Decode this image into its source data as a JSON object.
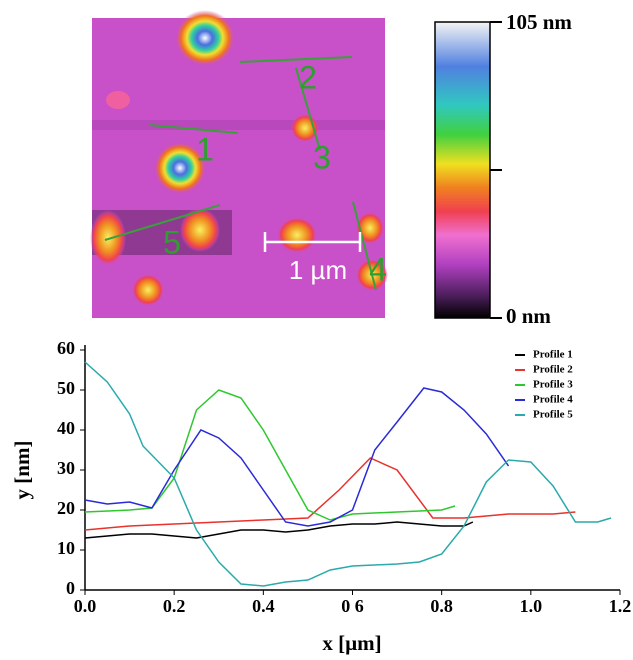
{
  "image": {
    "labels": [
      "1",
      "2",
      "3",
      "4",
      "5",
      "1 µm"
    ]
  },
  "colorbar": {
    "max_label": "105 nm",
    "min_label": "0 nm"
  },
  "chart_data": {
    "type": "line",
    "xlabel": "x [µm]",
    "ylabel": "y [nm]",
    "xlim": [
      0,
      1.2
    ],
    "ylim": [
      0,
      60
    ],
    "xticks": [
      {
        "value": 0,
        "label": "0.0"
      },
      0.2,
      0.4,
      {
        "value": 0.6,
        "label": "0 6"
      },
      0.8,
      {
        "value": 1,
        "label": "1.0"
      },
      1.2
    ],
    "yticks": [
      0,
      10,
      20,
      30,
      40,
      50,
      60
    ],
    "legend": "upper right",
    "series": [
      {
        "name": "Profile 1",
        "color": "#000000",
        "x": [
          0,
          0.05,
          0.1,
          0.15,
          0.2,
          0.25,
          0.3,
          0.35,
          0.4,
          0.45,
          0.5,
          0.55,
          0.6,
          0.65,
          0.7,
          0.75,
          0.8,
          0.85,
          0.87
        ],
        "values": [
          13,
          13.5,
          14,
          14,
          13.5,
          13,
          14,
          15,
          15,
          14.5,
          15,
          16,
          16.5,
          16.5,
          17,
          16.5,
          16,
          16,
          17
        ]
      },
      {
        "name": "Profile 2",
        "color": "#e8322b",
        "x": [
          0,
          0.1,
          0.2,
          0.3,
          0.4,
          0.5,
          0.57,
          0.64,
          0.7,
          0.78,
          0.85,
          0.95,
          1.05,
          1.1
        ],
        "values": [
          15,
          16,
          16.5,
          17,
          17.5,
          18,
          25,
          33,
          30,
          18,
          18,
          19,
          19,
          19.5
        ]
      },
      {
        "name": "Profile 3",
        "color": "#2ec82e",
        "x": [
          0,
          0.1,
          0.15,
          0.2,
          0.25,
          0.3,
          0.35,
          0.4,
          0.45,
          0.5,
          0.55,
          0.6,
          0.7,
          0.8,
          0.83
        ],
        "values": [
          19.5,
          20,
          20.5,
          28,
          45,
          50,
          48,
          40,
          30,
          20,
          17.5,
          19,
          19.5,
          20,
          21
        ]
      },
      {
        "name": "Profile 4",
        "color": "#2a2ad8",
        "x": [
          0,
          0.05,
          0.1,
          0.15,
          0.2,
          0.26,
          0.3,
          0.35,
          0.4,
          0.45,
          0.5,
          0.55,
          0.6,
          0.65,
          0.7,
          0.76,
          0.8,
          0.85,
          0.9,
          0.95
        ],
        "values": [
          22.5,
          21.5,
          22,
          20.5,
          30,
          40,
          38,
          33,
          25,
          17,
          16,
          17,
          20,
          35,
          42,
          50.5,
          49.5,
          45,
          39,
          31
        ]
      },
      {
        "name": "Profile 5",
        "color": "#2aaaaa",
        "x": [
          0,
          0.05,
          0.1,
          0.13,
          0.2,
          0.25,
          0.3,
          0.35,
          0.4,
          0.45,
          0.5,
          0.55,
          0.6,
          0.7,
          0.75,
          0.8,
          0.85,
          0.9,
          0.95,
          1.0,
          1.05,
          1.1,
          1.15,
          1.18
        ],
        "values": [
          57,
          52,
          44,
          36,
          28,
          15,
          7,
          1.5,
          1,
          2,
          2.5,
          5,
          6,
          6.5,
          7,
          9,
          16,
          27,
          32.5,
          32,
          26,
          17,
          17,
          18
        ]
      }
    ]
  }
}
